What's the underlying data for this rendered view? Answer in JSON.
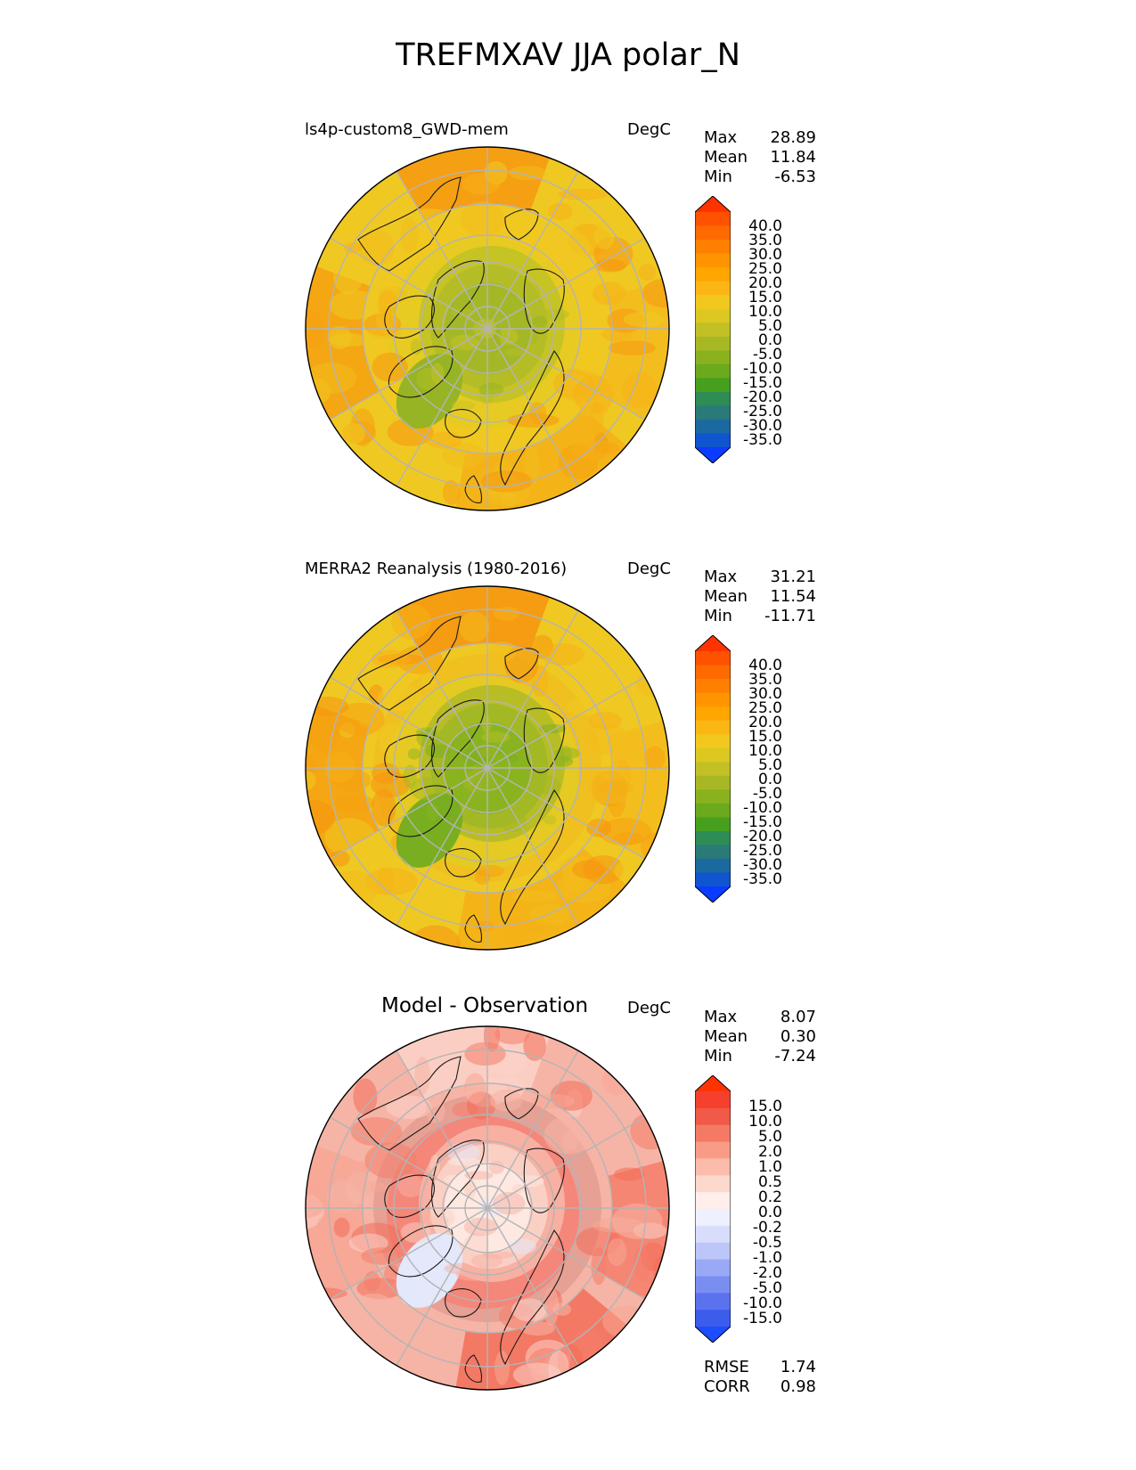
{
  "page": {
    "title": "TREFMXAV JJA polar_N"
  },
  "chart_data": [
    {
      "type": "heatmap",
      "projection": "polar stereographic (north)",
      "title": "ls4p-custom8_GWD-mem",
      "units": "DegC",
      "stats": {
        "max_label": "Max",
        "max": "28.89",
        "mean_label": "Mean",
        "mean": "11.84",
        "min_label": "Min",
        "min": "-6.53"
      },
      "colorbar": {
        "levels": [
          "40.0",
          "35.0",
          "30.0",
          "25.0",
          "20.0",
          "15.0",
          "10.0",
          "5.0",
          "0.0",
          "-5.0",
          "-10.0",
          "-15.0",
          "-20.0",
          "-25.0",
          "-30.0",
          "-35.0"
        ],
        "colors": [
          "#ff3300",
          "#ff5200",
          "#ff6a00",
          "#ff8000",
          "#ff9400",
          "#ffa600",
          "#fbb614",
          "#f2c81f",
          "#dcc821",
          "#c2c024",
          "#a8b824",
          "#8ab21f",
          "#6aaa1c",
          "#46a01e",
          "#2e8c55",
          "#2a7a78",
          "#1a6aa0",
          "#1055d0",
          "#0a3cff"
        ]
      },
      "zones": [
        "#f0c822",
        "#f3bc1c",
        "#f5b016",
        "#f5a010",
        "#f69810",
        "#f0c820",
        "#e7cb22"
      ],
      "pole": [
        "#a4b827",
        "#b4bd25",
        "#c6c324",
        "#96b424"
      ]
    },
    {
      "type": "heatmap",
      "projection": "polar stereographic (north)",
      "title": "MERRA2 Reanalysis (1980-2016)",
      "units": "DegC",
      "stats": {
        "max_label": "Max",
        "max": "31.21",
        "mean_label": "Mean",
        "mean": "11.54",
        "min_label": "Min",
        "min": "-11.71"
      },
      "colorbar": {
        "levels": [
          "40.0",
          "35.0",
          "30.0",
          "25.0",
          "20.0",
          "15.0",
          "10.0",
          "5.0",
          "0.0",
          "-5.0",
          "-10.0",
          "-15.0",
          "-20.0",
          "-25.0",
          "-30.0",
          "-35.0"
        ],
        "colors": [
          "#ff3300",
          "#ff5200",
          "#ff6a00",
          "#ff8000",
          "#ff9400",
          "#ffa600",
          "#fbb614",
          "#f2c81f",
          "#dcc821",
          "#c2c024",
          "#a8b824",
          "#8ab21f",
          "#6aaa1c",
          "#46a01e",
          "#2e8c55",
          "#2a7a78",
          "#1a6aa0",
          "#1055d0",
          "#0a3cff"
        ]
      },
      "zones": [
        "#f0c822",
        "#f3bc1c",
        "#f5b016",
        "#f5a010",
        "#f69410",
        "#f0c020",
        "#e4ca22"
      ],
      "pole": [
        "#8ab41f",
        "#a2b824",
        "#b8bd25",
        "#78ae20"
      ]
    },
    {
      "type": "heatmap",
      "projection": "polar stereographic (north)",
      "title": "Model - Observation",
      "units": "DegC",
      "stats": {
        "max_label": "Max",
        "max": "8.07",
        "mean_label": "Mean",
        "mean": "0.30",
        "min_label": "Min",
        "min": "-7.24"
      },
      "colorbar": {
        "levels": [
          "15.0",
          "10.0",
          "5.0",
          "2.0",
          "1.0",
          "0.5",
          "0.2",
          "0.0",
          "-0.2",
          "-0.5",
          "-1.0",
          "-2.0",
          "-5.0",
          "-10.0",
          "-15.0"
        ],
        "colors": [
          "#ff3300",
          "#f5402e",
          "#f05a46",
          "#f47a64",
          "#f89c88",
          "#fbbcac",
          "#fdd8cc",
          "#ffeeea",
          "#eef0fd",
          "#d8ddfb",
          "#bcc6f8",
          "#9aa9f5",
          "#7a8ef2",
          "#5a72ee",
          "#3c5cec",
          "#1e4cff"
        ]
      },
      "zones": [
        "#f6b4a6",
        "#f47e6a",
        "#f26e58",
        "#f7a694",
        "#fbd2c8",
        "#e6a094",
        "#f4877a"
      ],
      "pole": [
        "#fde8e2",
        "#fbd0c4",
        "#f7b0a2",
        "#e4e8fb"
      ],
      "metrics": {
        "rmse_label": "RMSE",
        "rmse": "1.74",
        "corr_label": "CORR",
        "corr": "0.98"
      }
    }
  ]
}
